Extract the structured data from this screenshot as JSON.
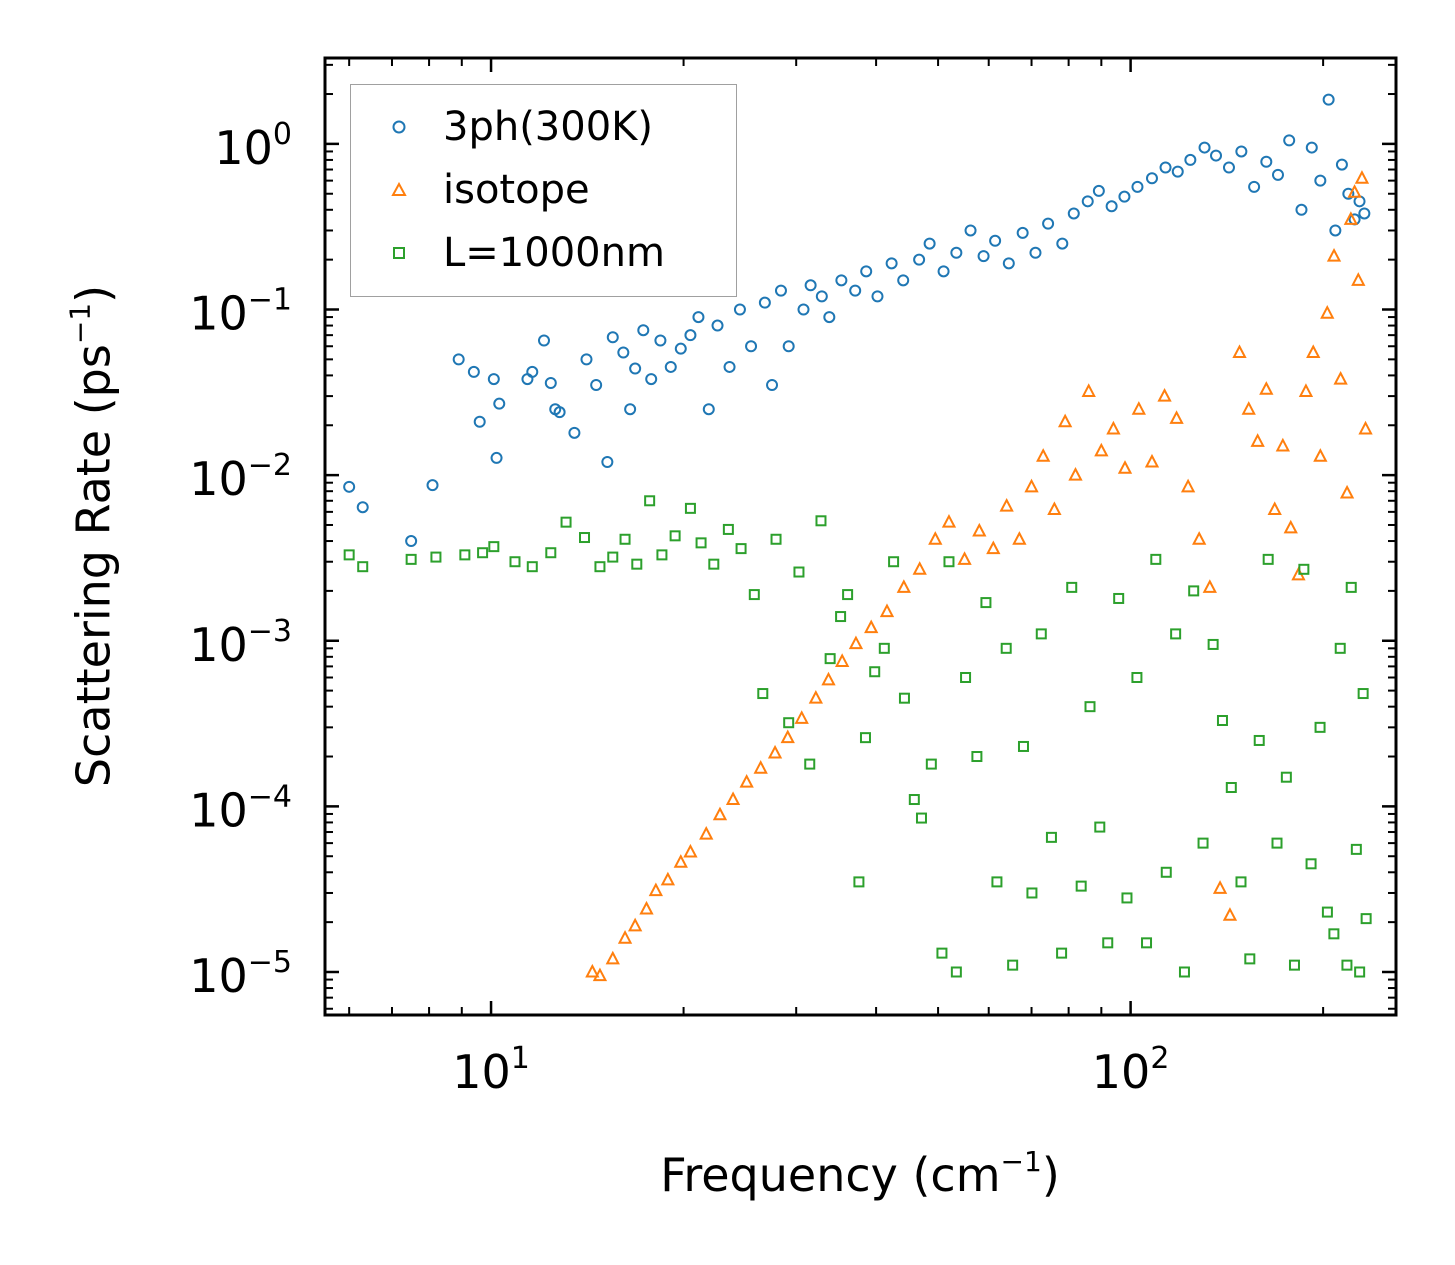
{
  "chart_data": {
    "type": "scatter",
    "title": "",
    "xlabel": "Frequency (cm",
    "xlabel_exp": "−1",
    "ylabel": "Scattering Rate (ps",
    "ylabel_exp": "−1",
    "xscale": "log",
    "yscale": "log",
    "xlim": [
      5.5,
      260
    ],
    "ylim": [
      5.5e-06,
      3.3
    ],
    "x_ticks": [
      {
        "base": "10",
        "exp": "1",
        "value": 10
      },
      {
        "base": "10",
        "exp": "2",
        "value": 100
      }
    ],
    "y_ticks": [
      {
        "base": "10",
        "exp": "0",
        "value": 1
      },
      {
        "base": "10",
        "exp": "−1",
        "value": 0.1
      },
      {
        "base": "10",
        "exp": "−2",
        "value": 0.01
      },
      {
        "base": "10",
        "exp": "−3",
        "value": 0.001
      },
      {
        "base": "10",
        "exp": "−4",
        "value": 0.0001
      },
      {
        "base": "10",
        "exp": "−5",
        "value": 1e-05
      }
    ],
    "legend_position": "top-left",
    "series": [
      {
        "name": "3ph(300K)",
        "marker": "circle",
        "color": "#1f77b4",
        "points": [
          [
            6.0,
            0.0085
          ],
          [
            6.3,
            0.0064
          ],
          [
            7.5,
            0.004
          ],
          [
            8.1,
            0.0087
          ],
          [
            8.9,
            0.05
          ],
          [
            9.4,
            0.042
          ],
          [
            9.6,
            0.021
          ],
          [
            10.1,
            0.038
          ],
          [
            10.3,
            0.027
          ],
          [
            10.2,
            0.0127
          ],
          [
            11.4,
            0.038
          ],
          [
            11.6,
            0.042
          ],
          [
            12.1,
            0.065
          ],
          [
            12.4,
            0.036
          ],
          [
            12.6,
            0.025
          ],
          [
            12.8,
            0.024
          ],
          [
            13.5,
            0.018
          ],
          [
            14.1,
            0.05
          ],
          [
            14.6,
            0.035
          ],
          [
            15.2,
            0.012
          ],
          [
            15.5,
            0.068
          ],
          [
            16.1,
            0.055
          ],
          [
            16.5,
            0.025
          ],
          [
            16.8,
            0.044
          ],
          [
            17.3,
            0.075
          ],
          [
            17.8,
            0.038
          ],
          [
            18.4,
            0.065
          ],
          [
            19.1,
            0.045
          ],
          [
            19.8,
            0.058
          ],
          [
            20.5,
            0.07
          ],
          [
            21.1,
            0.09
          ],
          [
            21.9,
            0.025
          ],
          [
            22.6,
            0.08
          ],
          [
            23.6,
            0.045
          ],
          [
            24.5,
            0.1
          ],
          [
            25.5,
            0.06
          ],
          [
            26.8,
            0.11
          ],
          [
            27.5,
            0.035
          ],
          [
            28.4,
            0.13
          ],
          [
            29.2,
            0.06
          ],
          [
            30.8,
            0.1
          ],
          [
            31.6,
            0.14
          ],
          [
            32.9,
            0.12
          ],
          [
            33.8,
            0.09
          ],
          [
            35.3,
            0.15
          ],
          [
            37.1,
            0.13
          ],
          [
            38.6,
            0.17
          ],
          [
            40.2,
            0.12
          ],
          [
            42.3,
            0.19
          ],
          [
            44.1,
            0.15
          ],
          [
            46.7,
            0.2
          ],
          [
            48.5,
            0.25
          ],
          [
            51.0,
            0.17
          ],
          [
            53.4,
            0.22
          ],
          [
            56.2,
            0.3
          ],
          [
            58.9,
            0.21
          ],
          [
            61.4,
            0.26
          ],
          [
            64.5,
            0.19
          ],
          [
            67.8,
            0.29
          ],
          [
            71.0,
            0.22
          ],
          [
            74.3,
            0.33
          ],
          [
            78.2,
            0.25
          ],
          [
            81.5,
            0.38
          ],
          [
            85.7,
            0.45
          ],
          [
            89.2,
            0.52
          ],
          [
            93.4,
            0.42
          ],
          [
            97.8,
            0.48
          ],
          [
            102.5,
            0.55
          ],
          [
            108.0,
            0.62
          ],
          [
            113.4,
            0.72
          ],
          [
            118.5,
            0.68
          ],
          [
            124.0,
            0.8
          ],
          [
            130.5,
            0.95
          ],
          [
            136.0,
            0.85
          ],
          [
            142.5,
            0.72
          ],
          [
            149.0,
            0.9
          ],
          [
            156.0,
            0.55
          ],
          [
            163.0,
            0.78
          ],
          [
            170.0,
            0.65
          ],
          [
            177.0,
            1.05
          ],
          [
            185.0,
            0.4
          ],
          [
            192.0,
            0.95
          ],
          [
            198.0,
            0.6
          ],
          [
            204.0,
            1.85
          ],
          [
            209.0,
            0.3
          ],
          [
            214.0,
            0.75
          ],
          [
            219.0,
            0.5
          ],
          [
            224.0,
            0.35
          ],
          [
            228.0,
            0.45
          ],
          [
            232.0,
            0.38
          ]
        ]
      },
      {
        "name": "isotope",
        "marker": "triangle",
        "color": "#ff7f0e",
        "points": [
          [
            14.4,
            1e-05
          ],
          [
            14.8,
            9.5e-06
          ],
          [
            15.5,
            1.2e-05
          ],
          [
            16.2,
            1.6e-05
          ],
          [
            16.8,
            1.9e-05
          ],
          [
            17.5,
            2.4e-05
          ],
          [
            18.1,
            3.1e-05
          ],
          [
            18.9,
            3.6e-05
          ],
          [
            19.8,
            4.6e-05
          ],
          [
            20.5,
            5.3e-05
          ],
          [
            21.7,
            6.8e-05
          ],
          [
            22.8,
            8.9e-05
          ],
          [
            23.9,
            0.00011
          ],
          [
            25.1,
            0.00014
          ],
          [
            26.4,
            0.00017
          ],
          [
            27.8,
            0.00021
          ],
          [
            29.1,
            0.00026
          ],
          [
            30.6,
            0.00034
          ],
          [
            32.2,
            0.00045
          ],
          [
            33.7,
            0.00058
          ],
          [
            35.4,
            0.00075
          ],
          [
            37.2,
            0.00096
          ],
          [
            39.3,
            0.0012
          ],
          [
            41.6,
            0.0015
          ],
          [
            44.2,
            0.0021
          ],
          [
            46.8,
            0.0027
          ],
          [
            49.5,
            0.0041
          ],
          [
            52.0,
            0.0052
          ],
          [
            55.0,
            0.0031
          ],
          [
            58.0,
            0.0046
          ],
          [
            61.0,
            0.0036
          ],
          [
            64.0,
            0.0065
          ],
          [
            67.0,
            0.0041
          ],
          [
            70.0,
            0.0085
          ],
          [
            73.0,
            0.013
          ],
          [
            76.0,
            0.0062
          ],
          [
            79.0,
            0.021
          ],
          [
            82.0,
            0.01
          ],
          [
            86.0,
            0.032
          ],
          [
            90.0,
            0.014
          ],
          [
            94.0,
            0.019
          ],
          [
            98.0,
            0.011
          ],
          [
            103.0,
            0.025
          ],
          [
            108.0,
            0.012
          ],
          [
            113.0,
            0.03
          ],
          [
            118.0,
            0.022
          ],
          [
            123.0,
            0.0085
          ],
          [
            128.0,
            0.0041
          ],
          [
            133.0,
            0.0021
          ],
          [
            138.0,
            3.2e-05
          ],
          [
            143.0,
            2.2e-05
          ],
          [
            148.0,
            0.055
          ],
          [
            153.0,
            0.025
          ],
          [
            158.0,
            0.016
          ],
          [
            163.0,
            0.033
          ],
          [
            168.0,
            0.0062
          ],
          [
            173.0,
            0.015
          ],
          [
            178.0,
            0.0048
          ],
          [
            183.0,
            0.0025
          ],
          [
            188.0,
            0.032
          ],
          [
            193.0,
            0.055
          ],
          [
            198.0,
            0.013
          ],
          [
            203.0,
            0.095
          ],
          [
            208.0,
            0.21
          ],
          [
            213.0,
            0.038
          ],
          [
            218.0,
            0.0078
          ],
          [
            221.0,
            0.35
          ],
          [
            224.0,
            0.51
          ],
          [
            227.0,
            0.15
          ],
          [
            230.0,
            0.62
          ],
          [
            233.0,
            0.019
          ]
        ]
      },
      {
        "name": "L=1000nm",
        "marker": "square",
        "color": "#2ca02c",
        "points": [
          [
            6.0,
            0.0033
          ],
          [
            6.3,
            0.0028
          ],
          [
            7.5,
            0.0031
          ],
          [
            8.2,
            0.0032
          ],
          [
            9.1,
            0.0033
          ],
          [
            9.7,
            0.0034
          ],
          [
            10.1,
            0.0037
          ],
          [
            10.9,
            0.003
          ],
          [
            11.6,
            0.0028
          ],
          [
            12.4,
            0.0034
          ],
          [
            13.1,
            0.0052
          ],
          [
            14.0,
            0.0042
          ],
          [
            14.8,
            0.0028
          ],
          [
            15.5,
            0.0032
          ],
          [
            16.2,
            0.0041
          ],
          [
            16.9,
            0.0029
          ],
          [
            17.7,
            0.007
          ],
          [
            18.5,
            0.0033
          ],
          [
            19.4,
            0.0043
          ],
          [
            20.5,
            0.0063
          ],
          [
            21.3,
            0.0039
          ],
          [
            22.3,
            0.0029
          ],
          [
            23.5,
            0.0047
          ],
          [
            24.6,
            0.0036
          ],
          [
            25.8,
            0.0019
          ],
          [
            26.6,
            0.00048
          ],
          [
            27.9,
            0.0041
          ],
          [
            29.2,
            0.00032
          ],
          [
            30.3,
            0.0026
          ],
          [
            31.5,
            0.00018
          ],
          [
            32.8,
            0.0053
          ],
          [
            33.9,
            0.00078
          ],
          [
            35.2,
            0.0014
          ],
          [
            36.1,
            0.0019
          ],
          [
            37.6,
            3.5e-05
          ],
          [
            38.5,
            0.00026
          ],
          [
            39.8,
            0.00065
          ],
          [
            41.2,
            0.0009
          ],
          [
            42.6,
            0.003
          ],
          [
            44.3,
            0.00045
          ],
          [
            45.9,
            0.00011
          ],
          [
            47.1,
            8.5e-05
          ],
          [
            48.8,
            0.00018
          ],
          [
            50.7,
            1.3e-05
          ],
          [
            52.0,
            0.003
          ],
          [
            53.4,
            1e-05
          ],
          [
            55.2,
            0.0006
          ],
          [
            57.5,
            0.0002
          ],
          [
            59.4,
            0.0017
          ],
          [
            61.8,
            3.5e-05
          ],
          [
            63.9,
            0.0009
          ],
          [
            65.4,
            1.1e-05
          ],
          [
            68.0,
            0.00023
          ],
          [
            70.1,
            3e-05
          ],
          [
            72.5,
            0.0011
          ],
          [
            75.2,
            6.5e-05
          ],
          [
            78.0,
            1.3e-05
          ],
          [
            80.9,
            0.0021
          ],
          [
            83.7,
            3.3e-05
          ],
          [
            86.4,
            0.0004
          ],
          [
            89.5,
            7.5e-05
          ],
          [
            92.1,
            1.5e-05
          ],
          [
            95.8,
            0.0018
          ],
          [
            98.7,
            2.8e-05
          ],
          [
            102.3,
            0.0006
          ],
          [
            105.9,
            1.5e-05
          ],
          [
            109.5,
            0.0031
          ],
          [
            113.7,
            4e-05
          ],
          [
            117.6,
            0.0011
          ],
          [
            121.4,
            1e-05
          ],
          [
            125.5,
            0.002
          ],
          [
            129.8,
            6e-05
          ],
          [
            134.6,
            0.00095
          ],
          [
            139.2,
            0.00033
          ],
          [
            143.7,
            0.00013
          ],
          [
            148.8,
            3.5e-05
          ],
          [
            153.6,
            1.2e-05
          ],
          [
            158.9,
            0.00025
          ],
          [
            164.1,
            0.0031
          ],
          [
            169.4,
            6e-05
          ],
          [
            175.2,
            0.00015
          ],
          [
            180.4,
            1.1e-05
          ],
          [
            186.6,
            0.0027
          ],
          [
            191.5,
            4.5e-05
          ],
          [
            197.8,
            0.0003
          ],
          [
            203.1,
            2.3e-05
          ],
          [
            207.9,
            1.7e-05
          ],
          [
            212.7,
            0.0009
          ],
          [
            217.9,
            1.1e-05
          ],
          [
            221.3,
            0.0021
          ],
          [
            225.4,
            5.5e-05
          ],
          [
            228.1,
            1e-05
          ],
          [
            231.0,
            0.00048
          ],
          [
            233.5,
            2.1e-05
          ]
        ]
      }
    ]
  }
}
